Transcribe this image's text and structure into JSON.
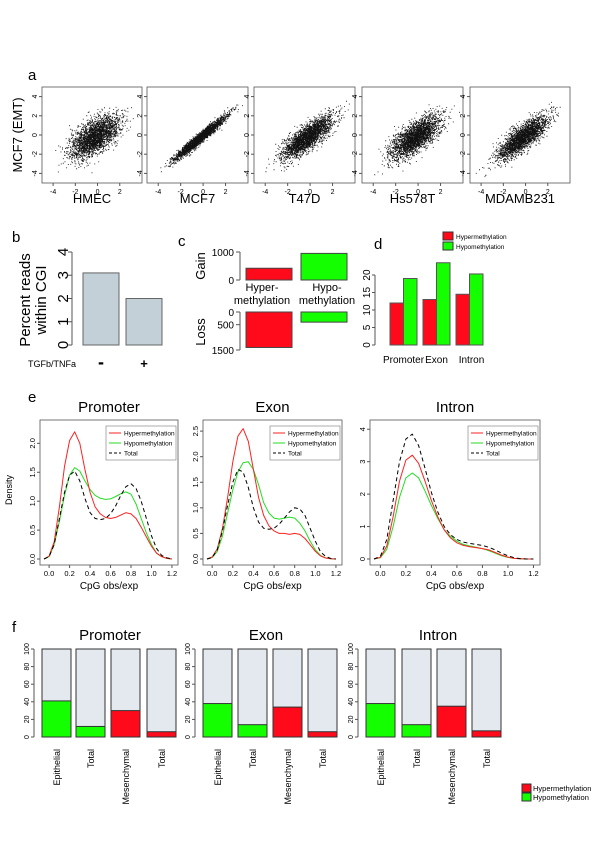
{
  "chart_data": [
    {
      "panel": "a",
      "type": "scatter",
      "ylabel": "MCF7 (EMT)",
      "x_ticks": [
        "-4",
        "-2",
        "0",
        "2"
      ],
      "y_ticks": [
        "-4",
        "-2",
        "0",
        "2",
        "4"
      ],
      "xlim": [
        -5,
        4
      ],
      "ylim": [
        -5,
        5
      ],
      "plots": [
        {
          "xlabel": "HMEC",
          "correlation": 0.6
        },
        {
          "xlabel": "MCF7",
          "correlation": 0.97
        },
        {
          "xlabel": "T47D",
          "correlation": 0.8
        },
        {
          "xlabel": "Hs578T",
          "correlation": 0.7
        },
        {
          "xlabel": "MDAMB231",
          "correlation": 0.8
        }
      ]
    },
    {
      "panel": "b",
      "type": "bar",
      "ylabel": "Percent reads within CGI",
      "xlabel": "TGFb/TNFa",
      "categories": [
        "-",
        "+"
      ],
      "values": [
        3.1,
        2.0
      ],
      "ylim": [
        0,
        4
      ],
      "y_ticks": [
        "0",
        "1",
        "2",
        "3",
        "4"
      ],
      "color": "#c3d0d8"
    },
    {
      "panel": "c",
      "type": "bar",
      "categories": [
        "Hyper-\nmethylation",
        "Hypo-\nmethylation"
      ],
      "category_lines": [
        [
          "Hyper-",
          "methylation"
        ],
        [
          "Hypo-",
          "methylation"
        ]
      ],
      "gain_label": "Gain",
      "loss_label": "Loss",
      "gain_values": [
        420,
        950
      ],
      "loss_values": [
        1400,
        400
      ],
      "gain_ticks": [
        "0",
        "1000"
      ],
      "loss_ticks": [
        "0",
        "500",
        "1500"
      ],
      "colors": [
        "#ff0a1a",
        "#14ff00"
      ]
    },
    {
      "panel": "d",
      "type": "bar",
      "categories": [
        "Promoter",
        "Exon",
        "Intron"
      ],
      "series": [
        {
          "name": "Hypermethylation",
          "values": [
            12,
            13,
            14.5
          ],
          "color": "#ff0a1a"
        },
        {
          "name": "Hypomethylation",
          "values": [
            19,
            23.5,
            20.3
          ],
          "color": "#14ff00"
        }
      ],
      "ylim": [
        0,
        25
      ],
      "y_ticks": [
        "0",
        "5",
        "10",
        "15",
        "20"
      ],
      "legend": "top-right"
    },
    {
      "panel": "e",
      "type": "line",
      "ylabel": "Density",
      "xlabel": "CpG obs/exp",
      "x_ticks": [
        "0.0",
        "0.2",
        "0.4",
        "0.6",
        "0.8",
        "1.0",
        "1.2"
      ],
      "legend_labels": [
        "Hypermethylation",
        "Hypomethylation",
        "Total"
      ],
      "x": [
        -0.05,
        0.0,
        0.05,
        0.1,
        0.15,
        0.2,
        0.25,
        0.3,
        0.35,
        0.4,
        0.45,
        0.5,
        0.55,
        0.6,
        0.65,
        0.7,
        0.75,
        0.8,
        0.85,
        0.9,
        0.95,
        1.0,
        1.05,
        1.1,
        1.15,
        1.2
      ],
      "plots": [
        {
          "title": "Promoter",
          "ylim": [
            0,
            2.3
          ],
          "y_ticks": [
            "0.0",
            "0.5",
            "1.0",
            "1.5",
            "2.0"
          ],
          "hyper": [
            0,
            0.05,
            0.3,
            0.9,
            1.6,
            2.05,
            2.2,
            2.0,
            1.55,
            1.15,
            0.9,
            0.78,
            0.72,
            0.7,
            0.72,
            0.76,
            0.8,
            0.78,
            0.7,
            0.55,
            0.38,
            0.22,
            0.1,
            0.04,
            0.01,
            0
          ],
          "hypo": [
            0,
            0.04,
            0.25,
            0.65,
            1.1,
            1.45,
            1.58,
            1.52,
            1.35,
            1.2,
            1.1,
            1.05,
            1.03,
            1.04,
            1.08,
            1.13,
            1.16,
            1.12,
            0.95,
            0.7,
            0.45,
            0.25,
            0.1,
            0.04,
            0.01,
            0
          ],
          "total": [
            0,
            0.04,
            0.25,
            0.7,
            1.15,
            1.45,
            1.52,
            1.35,
            1.05,
            0.8,
            0.7,
            0.68,
            0.7,
            0.78,
            0.92,
            1.1,
            1.25,
            1.3,
            1.22,
            1.0,
            0.7,
            0.4,
            0.18,
            0.06,
            0.02,
            0
          ]
        },
        {
          "title": "Exon",
          "ylim": [
            0,
            2.6
          ],
          "y_ticks": [
            "0.0",
            "0.5",
            "1.0",
            "1.5",
            "2.0",
            "2.5"
          ],
          "hyper": [
            0,
            0.04,
            0.2,
            0.6,
            1.2,
            1.9,
            2.4,
            2.55,
            2.3,
            1.75,
            1.2,
            0.85,
            0.65,
            0.55,
            0.5,
            0.5,
            0.48,
            0.5,
            0.48,
            0.4,
            0.28,
            0.15,
            0.06,
            0.02,
            0.005,
            0
          ],
          "hypo": [
            0,
            0.03,
            0.15,
            0.45,
            0.9,
            1.35,
            1.7,
            1.88,
            1.9,
            1.75,
            1.45,
            1.1,
            0.9,
            0.8,
            0.78,
            0.8,
            0.82,
            0.8,
            0.7,
            0.55,
            0.35,
            0.18,
            0.07,
            0.02,
            0.005,
            0
          ],
          "total": [
            0,
            0.03,
            0.18,
            0.55,
            1.05,
            1.5,
            1.75,
            1.7,
            1.4,
            1.0,
            0.72,
            0.6,
            0.58,
            0.6,
            0.68,
            0.8,
            0.92,
            1.0,
            0.98,
            0.85,
            0.6,
            0.35,
            0.14,
            0.05,
            0.01,
            0
          ]
        },
        {
          "title": "Intron",
          "ylim": [
            0,
            4.1
          ],
          "y_ticks": [
            "0",
            "1",
            "2",
            "3",
            "4"
          ],
          "hyper": [
            0,
            0.05,
            0.4,
            1.3,
            2.4,
            3.05,
            3.2,
            2.95,
            2.4,
            1.8,
            1.3,
            0.9,
            0.65,
            0.5,
            0.42,
            0.38,
            0.35,
            0.32,
            0.28,
            0.2,
            0.12,
            0.06,
            0.02,
            0.01,
            0,
            0
          ],
          "hypo": [
            0,
            0.04,
            0.3,
            1.0,
            1.9,
            2.5,
            2.65,
            2.5,
            2.1,
            1.65,
            1.25,
            0.9,
            0.7,
            0.55,
            0.45,
            0.4,
            0.36,
            0.32,
            0.26,
            0.18,
            0.1,
            0.05,
            0.02,
            0.01,
            0,
            0
          ],
          "total": [
            0,
            0.08,
            0.6,
            1.8,
            3.0,
            3.7,
            3.85,
            3.5,
            2.8,
            2.05,
            1.45,
            1.0,
            0.75,
            0.6,
            0.52,
            0.48,
            0.45,
            0.42,
            0.36,
            0.28,
            0.18,
            0.1,
            0.04,
            0.01,
            0,
            0
          ]
        }
      ]
    },
    {
      "panel": "f",
      "type": "bar",
      "stacked": true,
      "categories": [
        "Epithelial",
        "Total",
        "Mesenchymal",
        "Total"
      ],
      "bar_colors": [
        "#14ff00",
        "#14ff00",
        "#ff0a1a",
        "#ff0a1a"
      ],
      "background_color": "#e3e9ee",
      "ylim": [
        0,
        100
      ],
      "y_ticks": [
        "0",
        "20",
        "40",
        "60",
        "80",
        "100"
      ],
      "plots": [
        {
          "title": "Promoter",
          "values": [
            41,
            12,
            30,
            6
          ]
        },
        {
          "title": "Exon",
          "values": [
            38,
            14,
            34,
            6
          ]
        },
        {
          "title": "Intron",
          "values": [
            38,
            14,
            35,
            7
          ]
        }
      ],
      "legend": [
        {
          "name": "Hypermethylation",
          "color": "#ff0a1a"
        },
        {
          "name": "Hypomethylation",
          "color": "#14ff00"
        }
      ],
      "legend_placement": "bottom-right"
    }
  ],
  "panel_labels": [
    "a",
    "b",
    "c",
    "d",
    "e",
    "f"
  ]
}
